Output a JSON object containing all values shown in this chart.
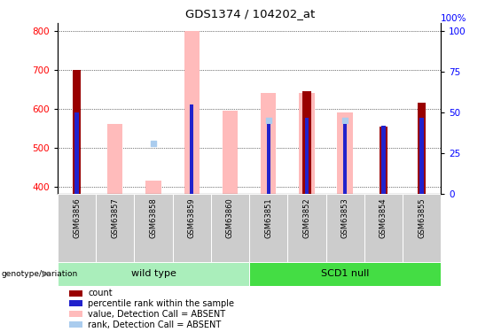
{
  "title": "GDS1374 / 104202_at",
  "samples": [
    "GSM63856",
    "GSM63857",
    "GSM63858",
    "GSM63859",
    "GSM63860",
    "GSM63851",
    "GSM63852",
    "GSM63853",
    "GSM63854",
    "GSM63855"
  ],
  "ylim_left": [
    380,
    820
  ],
  "ylim_right": [
    0,
    105
  ],
  "yticks_left": [
    400,
    500,
    600,
    700,
    800
  ],
  "yticks_right": [
    0,
    25,
    50,
    75,
    100
  ],
  "red_bar_values": [
    700,
    0,
    0,
    0,
    0,
    0,
    645,
    0,
    555,
    615
  ],
  "pink_bar_top": [
    0,
    560,
    415,
    800,
    595,
    640,
    640,
    590,
    0,
    0
  ],
  "blue_bar_pct": [
    50,
    0,
    0,
    55,
    0,
    43,
    47,
    43,
    42,
    47
  ],
  "light_blue_val": [
    0,
    0,
    510,
    0,
    0,
    570,
    0,
    570,
    0,
    0
  ],
  "bar_bottom": 380,
  "colors": {
    "red_bar": "#990000",
    "pink_bar": "#FFBBBB",
    "blue_bar": "#2222CC",
    "light_blue": "#AACCEE",
    "wild_type": "#AAEEBB",
    "scd1_null": "#44DD44",
    "gray_col": "#CCCCCC",
    "grid": "#000000"
  },
  "legend_items": [
    {
      "label": "count",
      "color": "#990000"
    },
    {
      "label": "percentile rank within the sample",
      "color": "#2222CC"
    },
    {
      "label": "value, Detection Call = ABSENT",
      "color": "#FFBBBB"
    },
    {
      "label": "rank, Detection Call = ABSENT",
      "color": "#AACCEE"
    }
  ]
}
